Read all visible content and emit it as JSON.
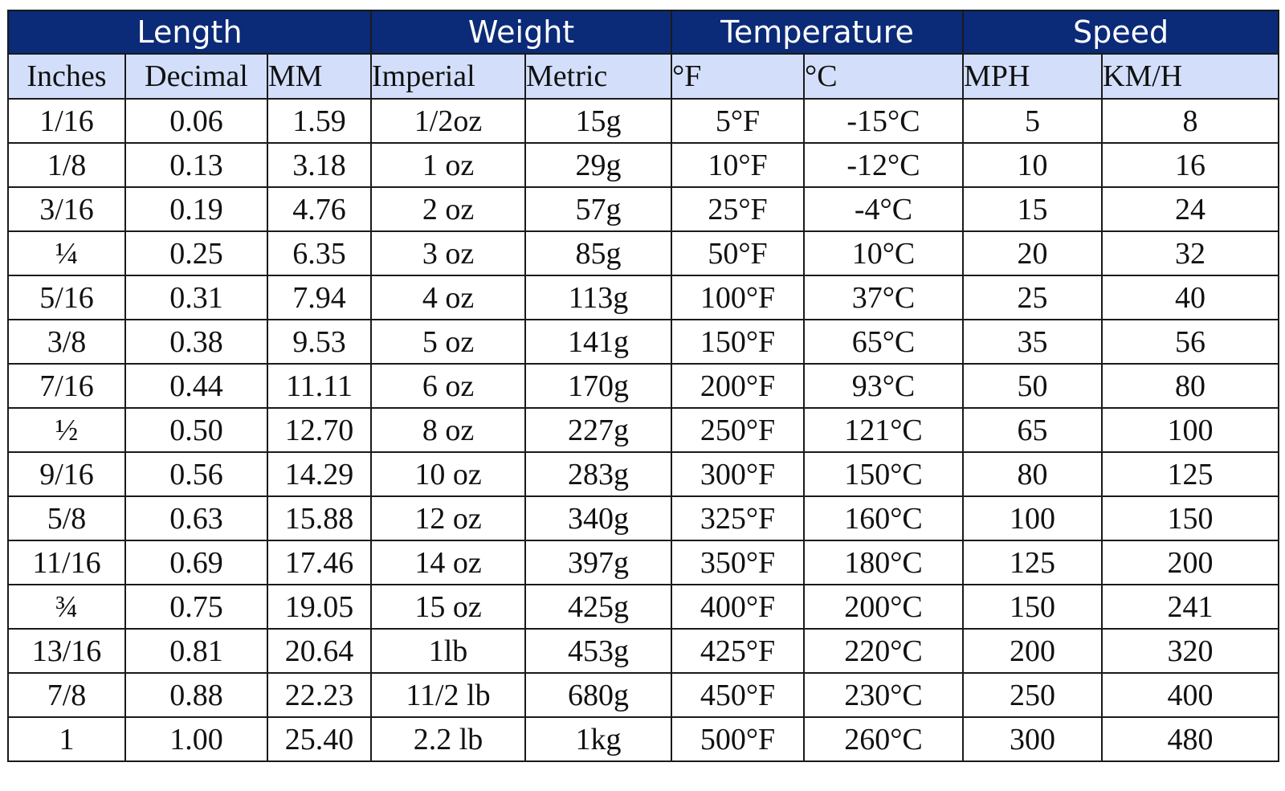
{
  "groups": [
    {
      "label": "Length",
      "span": 3
    },
    {
      "label": "Weight",
      "span": 2
    },
    {
      "label": "Temperature",
      "span": 2
    },
    {
      "label": "Speed",
      "span": 2
    }
  ],
  "columns": [
    "Inches",
    "Decimal",
    "MM",
    "Imperial",
    "Metric",
    "°F",
    "°C",
    "MPH",
    "KM/H"
  ],
  "rows": [
    [
      "1/16",
      "0.06",
      "1.59",
      "1/2oz",
      "15g",
      "5°F",
      "-15°C",
      "5",
      "8"
    ],
    [
      "1/8",
      "0.13",
      "3.18",
      "1 oz",
      "29g",
      "10°F",
      "-12°C",
      "10",
      "16"
    ],
    [
      "3/16",
      "0.19",
      "4.76",
      "2 oz",
      "57g",
      "25°F",
      "-4°C",
      "15",
      "24"
    ],
    [
      "¼",
      "0.25",
      "6.35",
      "3 oz",
      "85g",
      "50°F",
      "10°C",
      "20",
      "32"
    ],
    [
      "5/16",
      "0.31",
      "7.94",
      "4 oz",
      "113g",
      "100°F",
      "37°C",
      "25",
      "40"
    ],
    [
      "3/8",
      "0.38",
      "9.53",
      "5 oz",
      "141g",
      "150°F",
      "65°C",
      "35",
      "56"
    ],
    [
      "7/16",
      "0.44",
      "11.11",
      "6 oz",
      "170g",
      "200°F",
      "93°C",
      "50",
      "80"
    ],
    [
      "½",
      "0.50",
      "12.70",
      "8 oz",
      "227g",
      "250°F",
      "121°C",
      "65",
      "100"
    ],
    [
      "9/16",
      "0.56",
      "14.29",
      "10 oz",
      "283g",
      "300°F",
      "150°C",
      "80",
      "125"
    ],
    [
      "5/8",
      "0.63",
      "15.88",
      "12 oz",
      "340g",
      "325°F",
      "160°C",
      "100",
      "150"
    ],
    [
      "11/16",
      "0.69",
      "17.46",
      "14 oz",
      "397g",
      "350°F",
      "180°C",
      "125",
      "200"
    ],
    [
      "¾",
      "0.75",
      "19.05",
      "15 oz",
      "425g",
      "400°F",
      "200°C",
      "150",
      "241"
    ],
    [
      "13/16",
      "0.81",
      "20.64",
      "1lb",
      "453g",
      "425°F",
      "220°C",
      "200",
      "320"
    ],
    [
      "7/8",
      "0.88",
      "22.23",
      "11/2 lb",
      "680g",
      "450°F",
      "230°C",
      "250",
      "400"
    ],
    [
      "1",
      "1.00",
      "25.40",
      "2.2 lb",
      "1kg",
      "500°F",
      "260°C",
      "300",
      "480"
    ]
  ],
  "colors": {
    "group_header_bg": "#0b2a78",
    "group_header_text": "#ffffff",
    "sub_header_bg": "#d3dffa",
    "grid_lines": "#1a1a1a"
  }
}
